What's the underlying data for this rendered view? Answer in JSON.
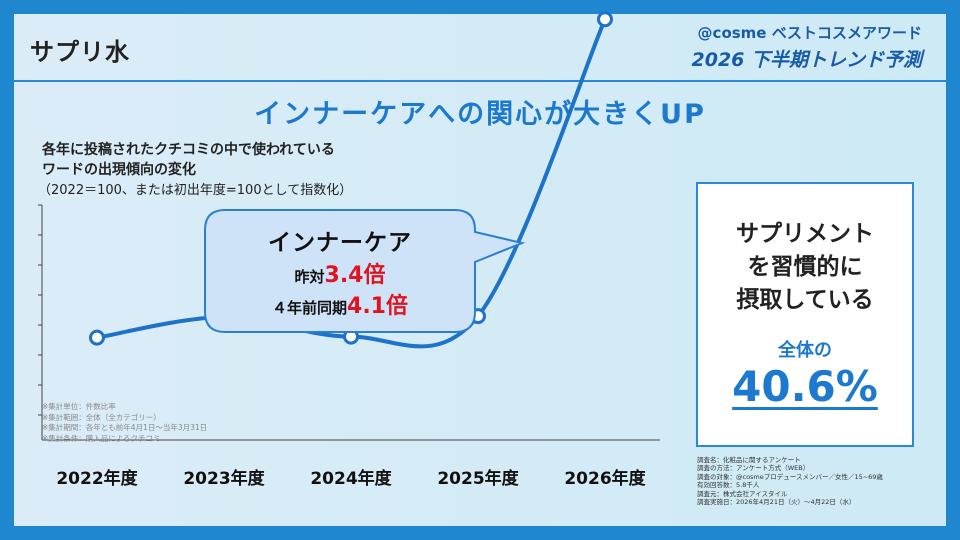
{
  "page": {
    "title": "サプリ水",
    "brand_line1": "@cosme ベストコスメアワード",
    "brand_line2": "2026 下半期トレンド予測",
    "headline": "インナーケアへの関心が大きくUP"
  },
  "chart_desc": {
    "line1": "各年に投稿されたクチコミの中で使われている",
    "line2": "ワードの出現傾向の変化",
    "line3": "（2022＝100、または初出年度=100として指数化）"
  },
  "notes": [
    "※集計単位：件数比率",
    "※集計範囲：全体（全カテゴリー）",
    "※集計期間：各年とも前年4月1日～当年3月31日",
    "※集計条件：購入品によるクチコミ"
  ],
  "callout": {
    "title": "インナーケア",
    "line1_prefix": "昨対",
    "line1_value": "3.4倍",
    "line2_prefix": "４年前同期",
    "line2_value": "4.1倍"
  },
  "chart_data": {
    "type": "line",
    "categories": [
      "2022年度",
      "2023年度",
      "2024年度",
      "2025年度",
      "2026年度"
    ],
    "series": [
      {
        "values": [
          100,
          120,
          101,
          121,
          411
        ]
      }
    ],
    "ylim": [
      0,
      420
    ],
    "grid": false,
    "line_color": "#1d73c9"
  },
  "stat": {
    "line1": "サプリメント",
    "line2": "を習慣的に",
    "line3": "摂取している",
    "label": "全体の",
    "value": "40.6%"
  },
  "survey": [
    "調査名：化粧品に関するアンケート",
    "調査の方法：アンケート方式（WEB）",
    "調査の対象：@cosmeプロデュースメンバー／女性／15~69歳",
    "有効回答数：5.8千人",
    "調査元：株式会社アイスタイル",
    "調査実施日：2026年4月21日（火）～4月22日（水）"
  ]
}
